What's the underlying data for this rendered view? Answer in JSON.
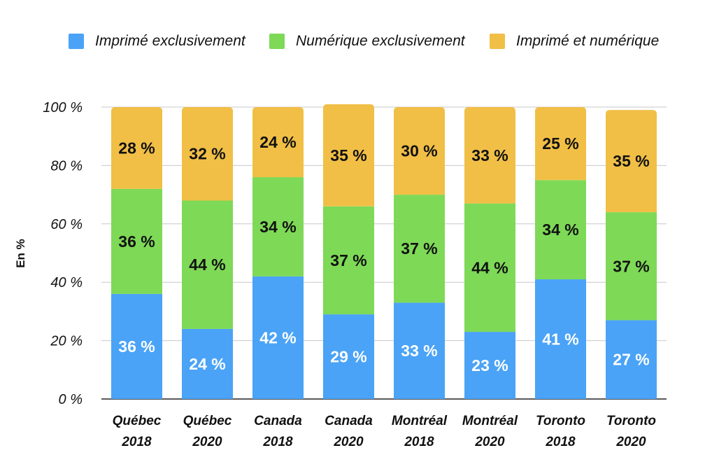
{
  "chart_data": {
    "type": "bar",
    "stacked": true,
    "ylabel": "En %",
    "ylim": [
      0,
      100
    ],
    "yticks": [
      0,
      20,
      40,
      60,
      80,
      100
    ],
    "ytick_labels": [
      "0 %",
      "20 %",
      "40 %",
      "60 %",
      "80 %",
      "100 %"
    ],
    "grid": true,
    "legend_position": "top",
    "categories": [
      [
        "Québec",
        "2018"
      ],
      [
        "Québec",
        "2020"
      ],
      [
        "Canada",
        "2018"
      ],
      [
        "Canada",
        "2020"
      ],
      [
        "Montréal",
        "2018"
      ],
      [
        "Montréal",
        "2020"
      ],
      [
        "Toronto",
        "2018"
      ],
      [
        "Toronto",
        "2020"
      ]
    ],
    "series": [
      {
        "name": "Imprimé exclusivement",
        "color": "#4aa3f6",
        "label_color": "#ffffff",
        "values": [
          36,
          24,
          42,
          29,
          33,
          23,
          41,
          27
        ],
        "labels": [
          "36 %",
          "24 %",
          "42 %",
          "29 %",
          "33 %",
          "23 %",
          "41 %",
          "27 %"
        ]
      },
      {
        "name": "Numérique exclusivement",
        "color": "#7ed957",
        "label_color": "#111111",
        "values": [
          36,
          44,
          34,
          37,
          37,
          44,
          34,
          37
        ],
        "labels": [
          "36 %",
          "44 %",
          "34 %",
          "37 %",
          "37 %",
          "44 %",
          "34 %",
          "37 %"
        ]
      },
      {
        "name": "Imprimé et numérique",
        "color": "#f1bf46",
        "label_color": "#111111",
        "values": [
          28,
          32,
          24,
          35,
          30,
          33,
          25,
          35
        ],
        "labels": [
          "28 %",
          "32 %",
          "24 %",
          "35 %",
          "30 %",
          "33 %",
          "25 %",
          "35 %"
        ]
      }
    ]
  }
}
